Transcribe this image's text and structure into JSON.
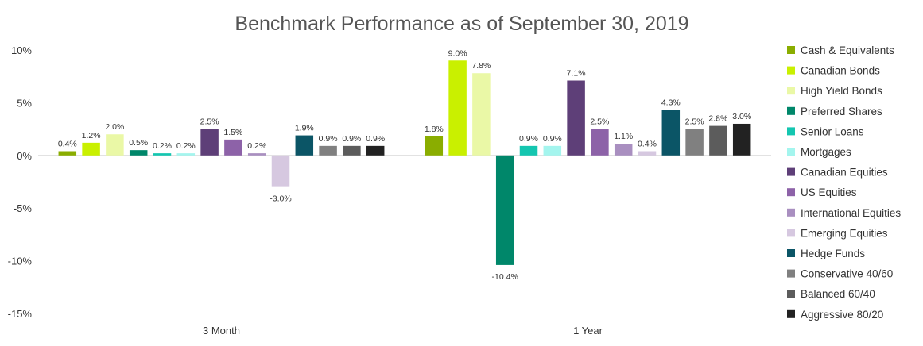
{
  "chart_data": {
    "type": "bar",
    "title": "Benchmark Performance as of September 30, 2019",
    "xlabel": "",
    "ylabel": "",
    "ylim": [
      -15,
      10
    ],
    "yticks": [
      10,
      5,
      0,
      -5,
      -10,
      -15
    ],
    "ytick_labels": [
      "10%",
      "5%",
      "0%",
      "-5%",
      "-10%",
      "-15%"
    ],
    "categories": [
      "3 Month",
      "1 Year"
    ],
    "grid": false,
    "legend_position": "right",
    "series": [
      {
        "name": "Cash & Equivalents",
        "color": "#8aad00",
        "values": [
          0.4,
          1.8
        ],
        "labels": [
          "0.4%",
          "1.8%"
        ]
      },
      {
        "name": "Canadian Bonds",
        "color": "#c9f000",
        "values": [
          1.2,
          9.0
        ],
        "labels": [
          "1.2%",
          "9.0%"
        ]
      },
      {
        "name": "High Yield Bonds",
        "color": "#eaf8a6",
        "values": [
          2.0,
          7.8
        ],
        "labels": [
          "2.0%",
          "7.8%"
        ]
      },
      {
        "name": "Preferred Shares",
        "color": "#00876a",
        "values": [
          0.5,
          -10.4
        ],
        "labels": [
          "0.5%",
          "-10.4%"
        ]
      },
      {
        "name": "Senior Loans",
        "color": "#14c6b0",
        "values": [
          0.2,
          0.9
        ],
        "labels": [
          "0.2%",
          "0.9%"
        ]
      },
      {
        "name": "Mortgages",
        "color": "#a4f5ee",
        "values": [
          0.2,
          0.9
        ],
        "labels": [
          "0.2%",
          "0.9%"
        ]
      },
      {
        "name": "Canadian Equities",
        "color": "#5e3f78",
        "values": [
          2.5,
          7.1
        ],
        "labels": [
          "2.5%",
          "7.1%"
        ]
      },
      {
        "name": "US Equities",
        "color": "#8d62a8",
        "values": [
          1.5,
          2.5
        ],
        "labels": [
          "1.5%",
          "2.5%"
        ]
      },
      {
        "name": "International Equities",
        "color": "#a98fc0",
        "values": [
          0.2,
          1.1
        ],
        "labels": [
          "0.2%",
          "1.1%"
        ]
      },
      {
        "name": "Emerging Equities",
        "color": "#d6c8e0",
        "values": [
          -3.0,
          0.4
        ],
        "labels": [
          "-3.0%",
          "0.4%"
        ]
      },
      {
        "name": "Hedge Funds",
        "color": "#0b5566",
        "values": [
          1.9,
          4.3
        ],
        "labels": [
          "1.9%",
          "4.3%"
        ]
      },
      {
        "name": "Conservative 40/60",
        "color": "#808080",
        "values": [
          0.9,
          2.5
        ],
        "labels": [
          "0.9%",
          "2.5%"
        ]
      },
      {
        "name": "Balanced 60/40",
        "color": "#5c5c5c",
        "values": [
          0.9,
          2.8
        ],
        "labels": [
          "0.9%",
          "2.8%"
        ]
      },
      {
        "name": "Aggressive 80/20",
        "color": "#222222",
        "values": [
          0.9,
          3.0
        ],
        "labels": [
          "0.9%",
          "3.0%"
        ]
      }
    ]
  }
}
